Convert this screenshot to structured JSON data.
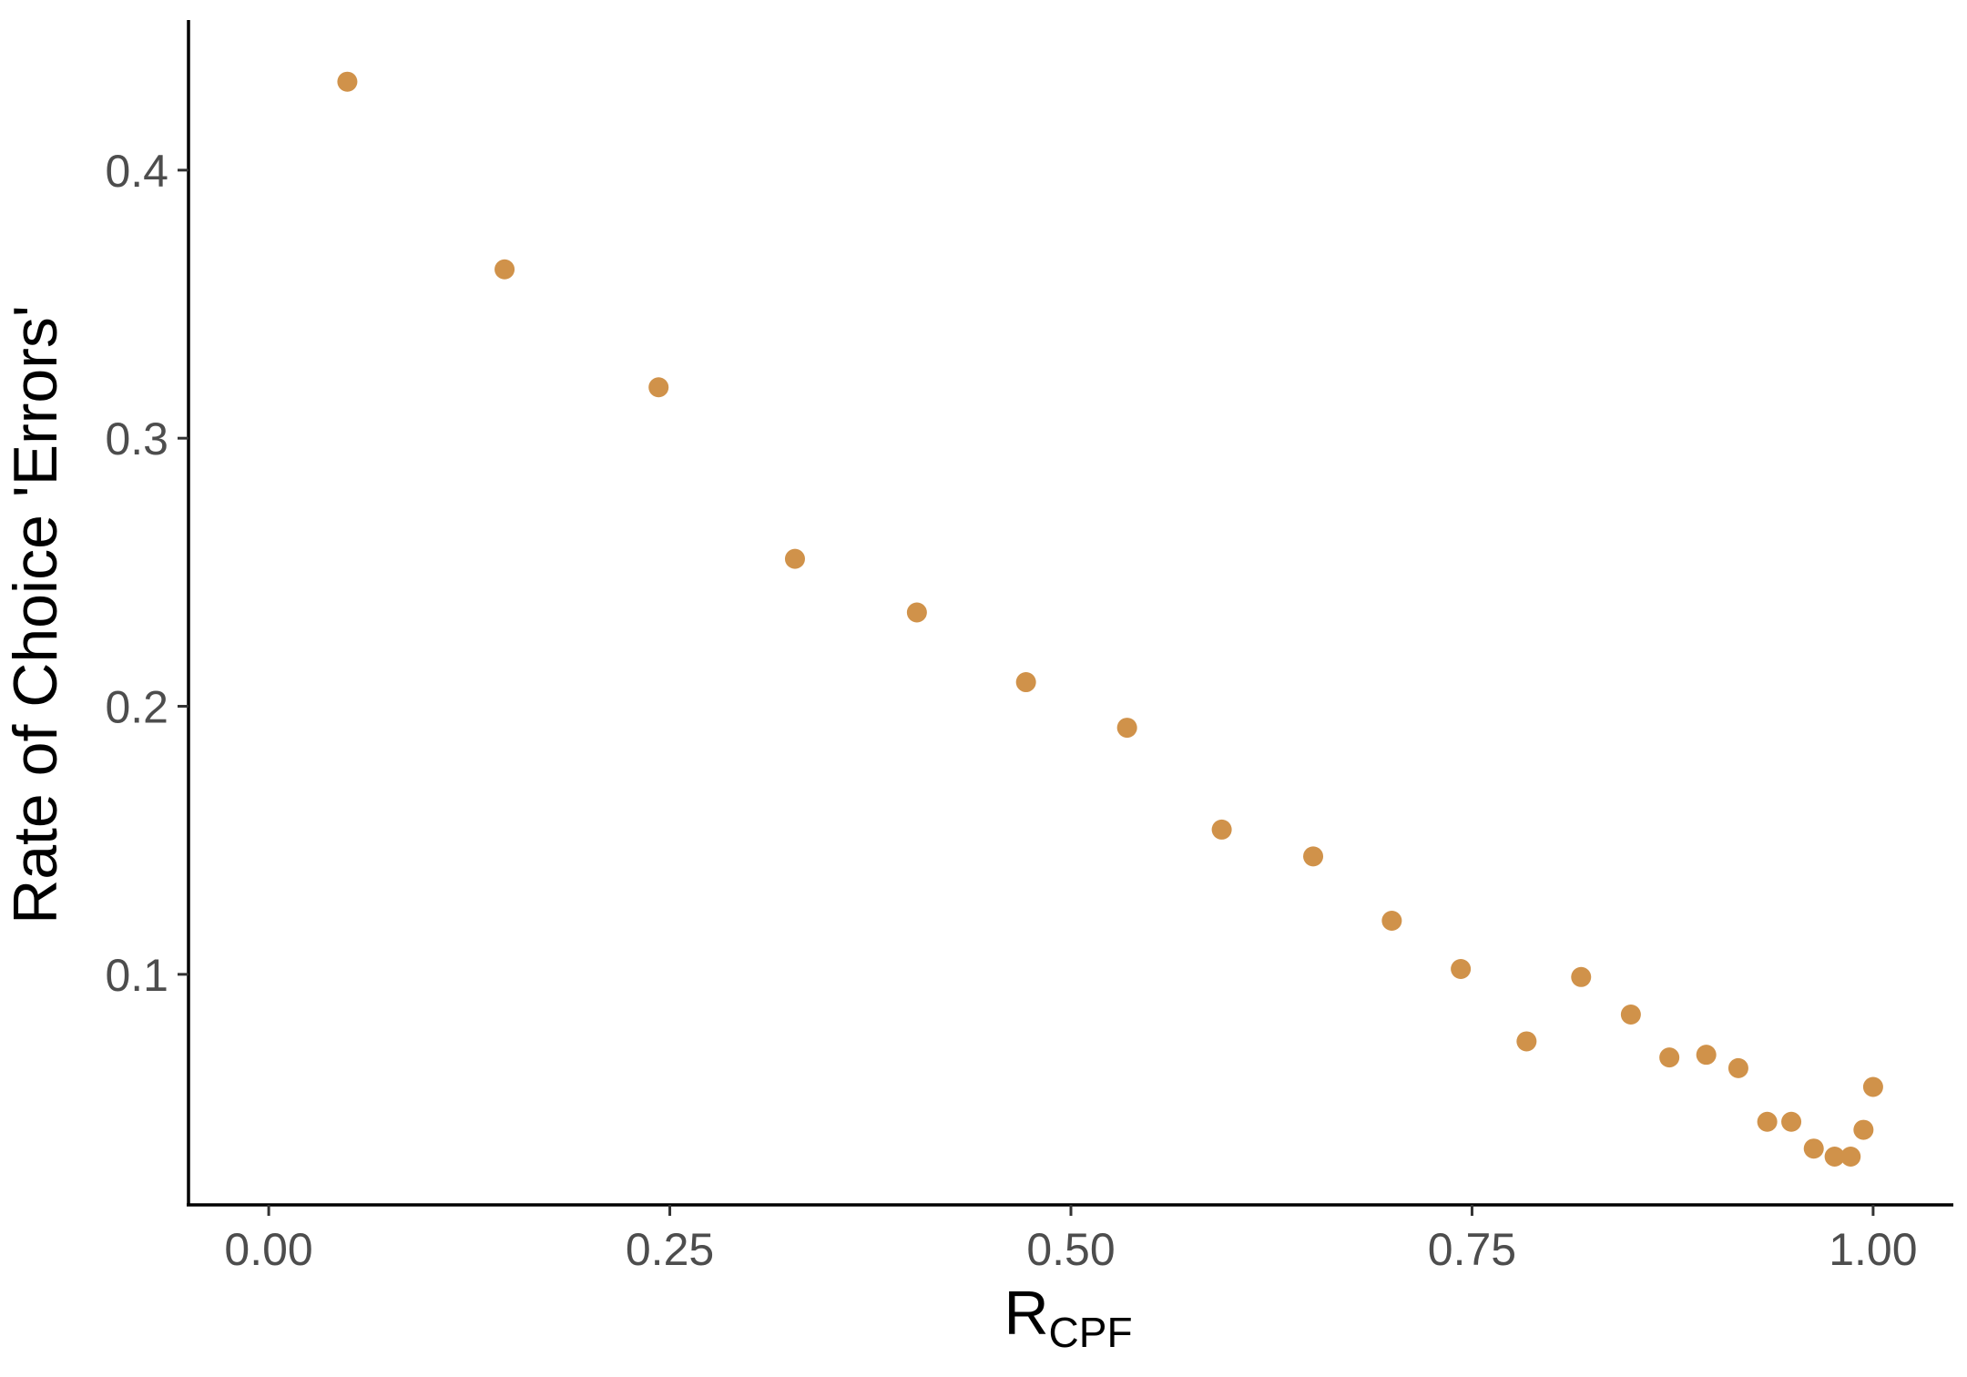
{
  "chart_data": {
    "type": "scatter",
    "title": "",
    "xlabel": "R",
    "xlabel_subscript": "CPF",
    "ylabel": "Rate of Choice 'Errors'",
    "xlim": [
      -0.05,
      1.05
    ],
    "ylim": [
      0.014,
      0.456
    ],
    "x_ticks": [
      0.0,
      0.25,
      0.5,
      0.75,
      1.0
    ],
    "x_tick_labels": [
      "0.00",
      "0.25",
      "0.50",
      "0.75",
      "1.00"
    ],
    "y_ticks": [
      0.1,
      0.2,
      0.3,
      0.4
    ],
    "y_tick_labels": [
      "0.1",
      "0.2",
      "0.3",
      "0.4"
    ],
    "grid": false,
    "point_color": "#D0924A",
    "points": [
      {
        "x": 0.049,
        "y": 0.433
      },
      {
        "x": 0.147,
        "y": 0.363
      },
      {
        "x": 0.243,
        "y": 0.319
      },
      {
        "x": 0.328,
        "y": 0.255
      },
      {
        "x": 0.404,
        "y": 0.235
      },
      {
        "x": 0.472,
        "y": 0.209
      },
      {
        "x": 0.535,
        "y": 0.192
      },
      {
        "x": 0.594,
        "y": 0.154
      },
      {
        "x": 0.651,
        "y": 0.144
      },
      {
        "x": 0.7,
        "y": 0.12
      },
      {
        "x": 0.743,
        "y": 0.102
      },
      {
        "x": 0.784,
        "y": 0.075
      },
      {
        "x": 0.818,
        "y": 0.099
      },
      {
        "x": 0.849,
        "y": 0.085
      },
      {
        "x": 0.873,
        "y": 0.069
      },
      {
        "x": 0.896,
        "y": 0.07
      },
      {
        "x": 0.916,
        "y": 0.065
      },
      {
        "x": 0.934,
        "y": 0.045
      },
      {
        "x": 0.949,
        "y": 0.045
      },
      {
        "x": 0.963,
        "y": 0.035
      },
      {
        "x": 0.976,
        "y": 0.032
      },
      {
        "x": 0.986,
        "y": 0.032
      },
      {
        "x": 0.994,
        "y": 0.042
      },
      {
        "x": 1.0,
        "y": 0.058
      }
    ]
  }
}
